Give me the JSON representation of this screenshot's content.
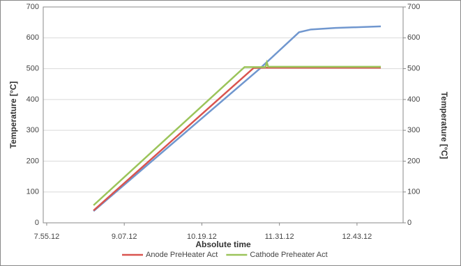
{
  "chart_data": {
    "type": "line",
    "ylabel": "Temperature [°C]",
    "y2label": "Temperature [°C]",
    "xlabel": "Absolute time",
    "xlim": [
      472,
      806
    ],
    "xticks": [
      {
        "value": 475.2,
        "label": "7.55.12"
      },
      {
        "value": 547.2,
        "label": "9.07.12"
      },
      {
        "value": 619.2,
        "label": "10.19.12"
      },
      {
        "value": 691.2,
        "label": "11.31.12"
      },
      {
        "value": 763.2,
        "label": "12.43.12"
      }
    ],
    "ylim": [
      0,
      700
    ],
    "yticks": [
      0,
      100,
      200,
      300,
      400,
      500,
      600,
      700
    ],
    "y2lim": [
      0,
      700
    ],
    "y2ticks": [
      0,
      100,
      200,
      300,
      400,
      500,
      600,
      700
    ],
    "grid": true,
    "legend": "bottom",
    "series": [
      {
        "color": "#7097cf",
        "x": [
          518.7,
          673.0,
          709.4,
          720.4,
          743.1,
          785.3
        ],
        "values": [
          38,
          500,
          618,
          627,
          632,
          637
        ]
      },
      {
        "name": "Anode PreHeater Act",
        "color": "#d9544f",
        "x": [
          518.7,
          667.2,
          678.2,
          785.3
        ],
        "values": [
          40,
          502,
          503,
          503
        ]
      },
      {
        "name": "Cathode Preheater Act",
        "color": "#9bc45a",
        "x": [
          518.7,
          658.8,
          678.2,
          679.5,
          680.8,
          785.3
        ],
        "values": [
          57,
          505,
          505,
          520,
          506,
          506
        ]
      }
    ]
  }
}
